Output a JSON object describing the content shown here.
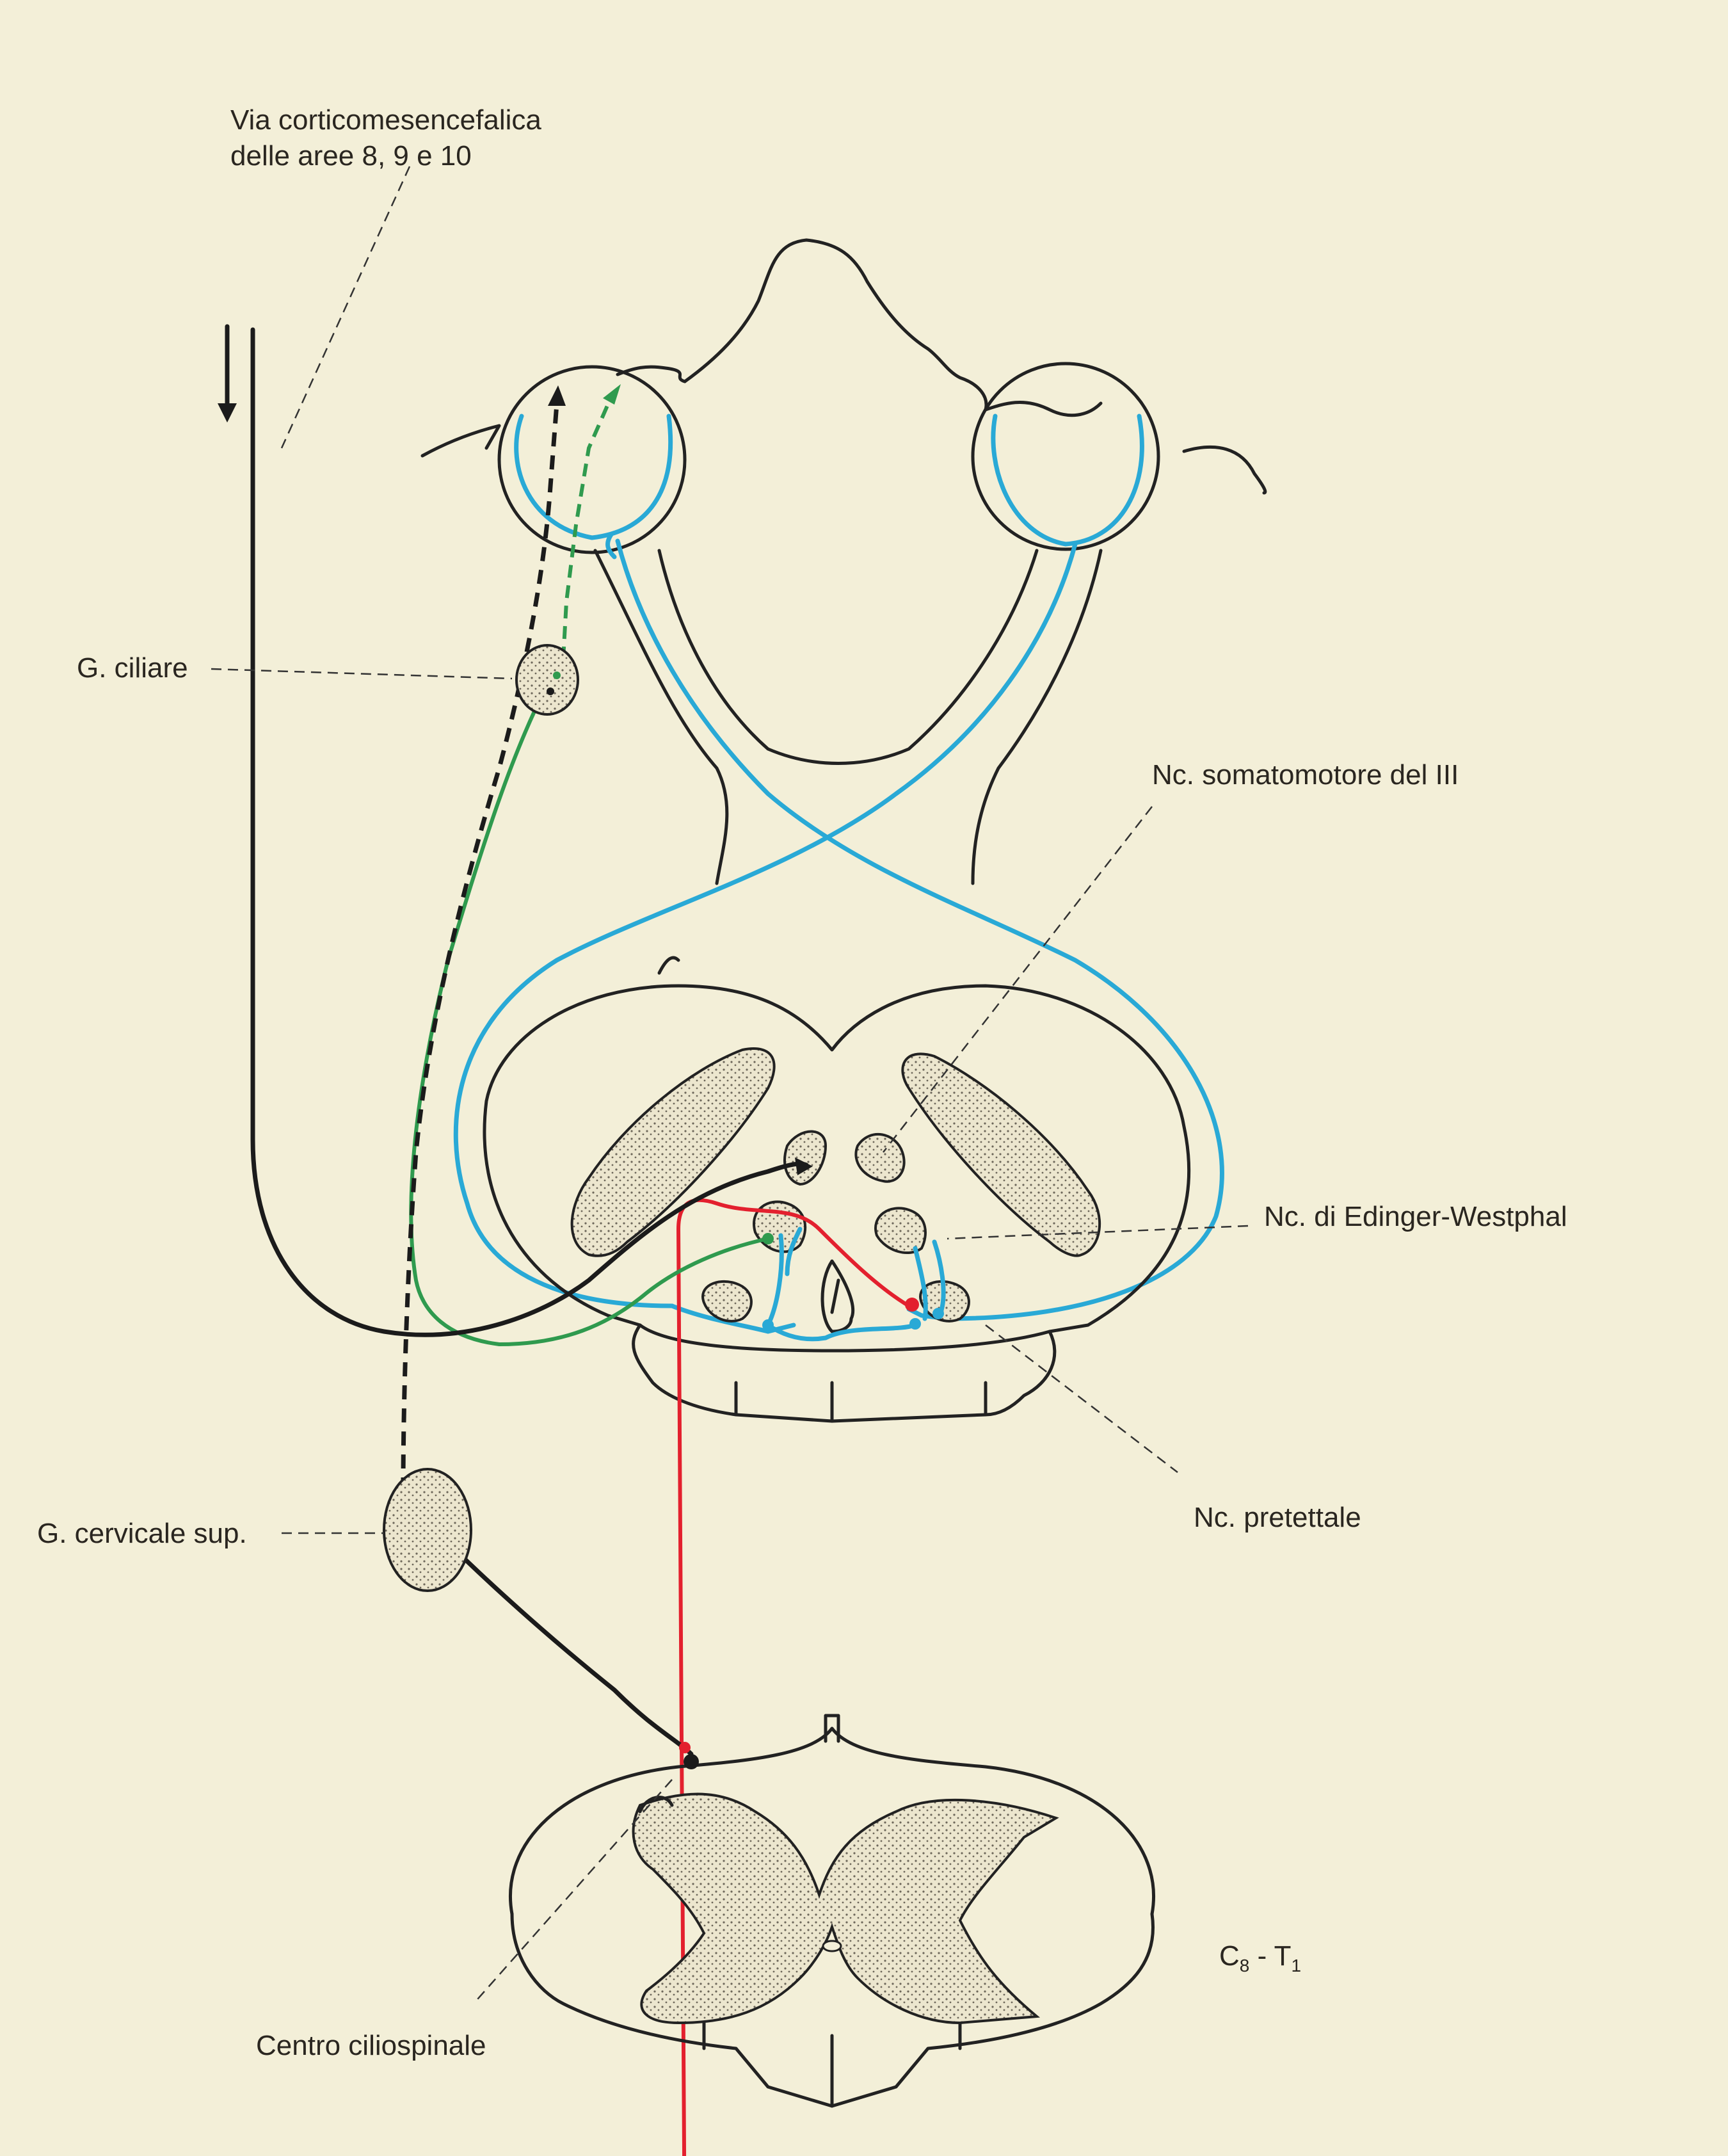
{
  "figure": {
    "colors": {
      "paper": "#f3efd8",
      "outline": "#222222",
      "afferent_blue": "#29a9d6",
      "parasympathetic_green": "#2f9a4e",
      "central_red": "#e3202e",
      "sympathetic_black": "#1b1b1b"
    },
    "labels": {
      "cortico_line1": "Via corticomesencefalica",
      "cortico_line2": "delle aree 8, 9 e 10",
      "ciliary_ganglion": "G. ciliare",
      "somatomotor_nucleus": "Nc. somatomotore del III",
      "edinger_westphal": "Nc. di Edinger-Westphal",
      "superior_cervical_ganglion": "G. cervicale sup.",
      "pretectal_nucleus": "Nc. pretettale",
      "spinal_level_main1": "C",
      "spinal_level_sub1": "8",
      "spinal_level_sep": " - T",
      "spinal_level_sub2": "1",
      "ciliospinal_center": "Centro ciliospinale"
    }
  }
}
